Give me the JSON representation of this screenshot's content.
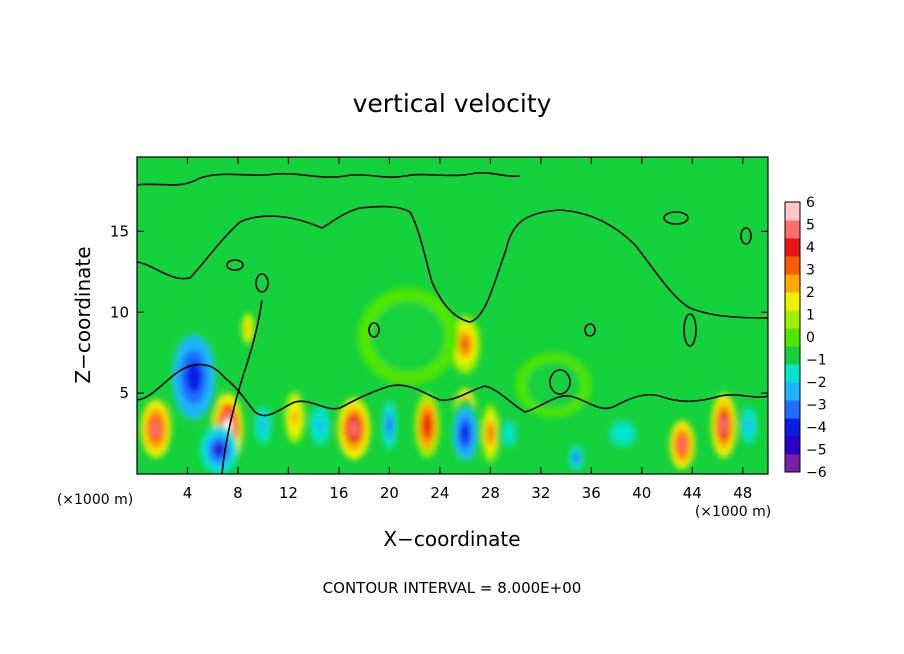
{
  "chart_data": {
    "type": "heatmap",
    "title": "vertical velocity",
    "xlabel": "X−coordinate",
    "ylabel": "Z−coordinate",
    "x_unit_left": "(×1000 m)",
    "x_unit_right": "(×1000 m)",
    "footer": "CONTOUR INTERVAL = 8.000E+00",
    "xlim": [
      0,
      50
    ],
    "ylim": [
      0,
      19.6
    ],
    "x_ticks": [
      4,
      8,
      12,
      16,
      20,
      24,
      28,
      32,
      36,
      40,
      44,
      48
    ],
    "x_tick_labels": [
      "4",
      "8",
      "12",
      "16",
      "20",
      "24",
      "28",
      "32",
      "36",
      "40",
      "44",
      "48"
    ],
    "y_ticks": [
      5,
      10,
      15
    ],
    "y_tick_labels": [
      "5",
      "10",
      "15"
    ],
    "colorbar": {
      "levels": [
        -6,
        -5,
        -4,
        -3,
        -2,
        -1,
        0,
        1,
        2,
        3,
        4,
        5,
        6
      ],
      "labels": [
        "6",
        "5",
        "4",
        "3",
        "2",
        "1",
        "0",
        "−1",
        "−2",
        "−3",
        "−4",
        "−5",
        "−6"
      ],
      "colors": [
        "#7a1fa8",
        "#2a00c8",
        "#0a1ee6",
        "#1e6eff",
        "#1eb4ff",
        "#00e6c8",
        "#14d23c",
        "#50e600",
        "#a0f000",
        "#f0f000",
        "#ffaa00",
        "#ff5a00",
        "#e61414",
        "#ff6e6e",
        "#ffc8c8"
      ]
    },
    "features": [
      {
        "x": 1.5,
        "z": 2.8,
        "v": 6,
        "rx": 1.2,
        "rz": 1.8
      },
      {
        "x": 7.2,
        "z": 2.8,
        "v": 8,
        "rx": 1.2,
        "rz": 2.2
      },
      {
        "x": 4.5,
        "z": 6.0,
        "v": -5,
        "rx": 2.2,
        "rz": 3.5
      },
      {
        "x": 6.5,
        "z": 1.5,
        "v": -6,
        "rx": 1.5,
        "rz": 1.5
      },
      {
        "x": 8.8,
        "z": 9.0,
        "v": 3,
        "rx": 0.5,
        "rz": 1.0
      },
      {
        "x": 10.0,
        "z": 3.0,
        "v": -3,
        "rx": 0.8,
        "rz": 1.5
      },
      {
        "x": 12.5,
        "z": 3.5,
        "v": 3,
        "rx": 0.8,
        "rz": 1.6
      },
      {
        "x": 14.5,
        "z": 3.0,
        "v": -3,
        "rx": 1.0,
        "rz": 1.6
      },
      {
        "x": 17.2,
        "z": 2.8,
        "v": 6.5,
        "rx": 1.3,
        "rz": 1.9
      },
      {
        "x": 20.0,
        "z": 3.0,
        "v": -4,
        "rx": 0.7,
        "rz": 2.0
      },
      {
        "x": 23.0,
        "z": 3.0,
        "v": 5,
        "rx": 1.0,
        "rz": 2.0
      },
      {
        "x": 26.0,
        "z": 3.8,
        "v": 6,
        "rx": 0.9,
        "rz": 1.5
      },
      {
        "x": 26.0,
        "z": 2.5,
        "v": -5,
        "rx": 1.2,
        "rz": 2.2
      },
      {
        "x": 26.0,
        "z": 8.0,
        "v": 4.5,
        "rx": 1.2,
        "rz": 1.8
      },
      {
        "x": 28.0,
        "z": 2.5,
        "v": 4,
        "rx": 0.7,
        "rz": 1.8
      },
      {
        "x": 29.5,
        "z": 2.5,
        "v": -2.5,
        "rx": 1.0,
        "rz": 1.5
      },
      {
        "x": 34.8,
        "z": 1.0,
        "v": -4,
        "rx": 0.7,
        "rz": 1.0
      },
      {
        "x": 38.5,
        "z": 2.5,
        "v": -2.5,
        "rx": 2.0,
        "rz": 1.5
      },
      {
        "x": 43.2,
        "z": 1.8,
        "v": 6,
        "rx": 1.0,
        "rz": 1.5
      },
      {
        "x": 46.5,
        "z": 3.0,
        "v": 6.5,
        "rx": 1.0,
        "rz": 2.0
      },
      {
        "x": 48.5,
        "z": 3.0,
        "v": -3,
        "rx": 0.8,
        "rz": 1.5
      },
      {
        "x": 21.5,
        "z": 8.5,
        "v": -1.5,
        "rx": 4.0,
        "rz": 3.0
      },
      {
        "x": 33.0,
        "z": 5.5,
        "v": -1.5,
        "rx": 3.0,
        "rz": 2.0
      }
    ]
  }
}
